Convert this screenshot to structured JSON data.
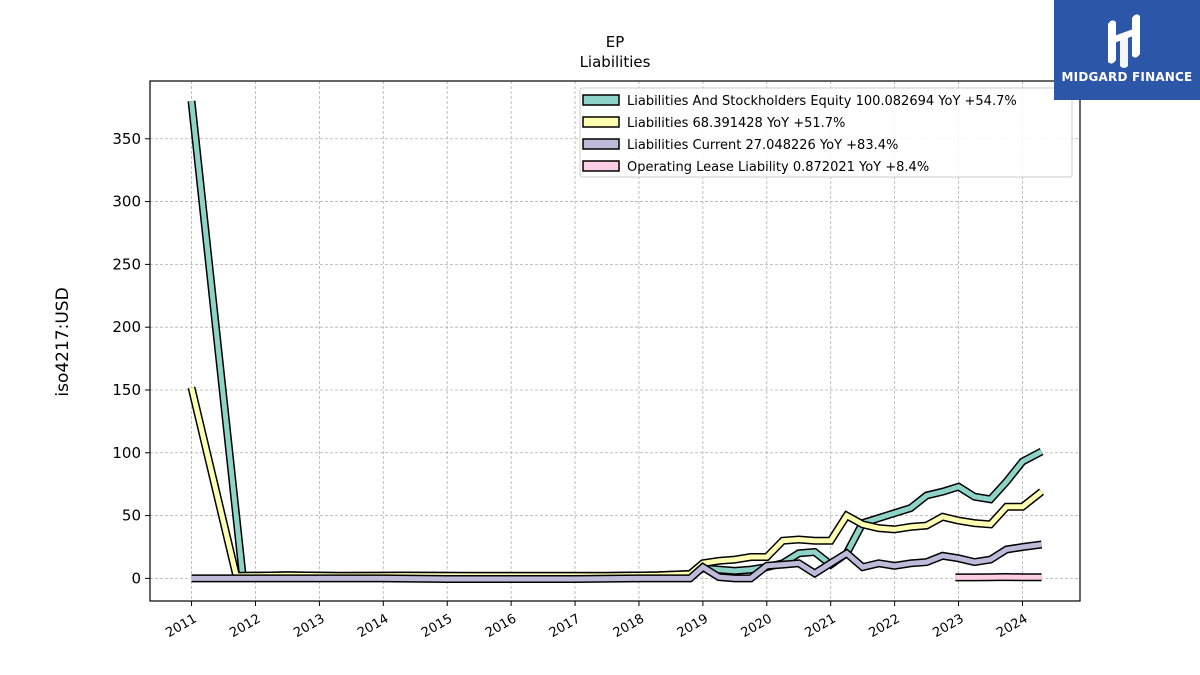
{
  "chart_data": {
    "type": "line",
    "title": "EP",
    "subtitle": "Liabilities",
    "ylabel": "iso4217:USD",
    "xlabel": "",
    "xlim": [
      2010.35,
      2024.9
    ],
    "ylim": [
      -18,
      396
    ],
    "grid": true,
    "legend_position": "top-right",
    "x_ticks": [
      "2011",
      "2012",
      "2013",
      "2014",
      "2015",
      "2016",
      "2017",
      "2018",
      "2019",
      "2020",
      "2021",
      "2022",
      "2023",
      "2024"
    ],
    "y_ticks": [
      0,
      50,
      100,
      150,
      200,
      250,
      300,
      350
    ],
    "series": [
      {
        "name": "Liabilities And Stockholders Equity",
        "legend_value": "100.082694 YoY +54.7%",
        "color": "#8dd3c7",
        "points": [
          [
            2011.0,
            380
          ],
          [
            2011.8,
            2
          ],
          [
            2012.5,
            2.5
          ],
          [
            2013.3,
            2
          ],
          [
            2014.3,
            2.2
          ],
          [
            2015.3,
            2
          ],
          [
            2016.5,
            2
          ],
          [
            2017.5,
            2
          ],
          [
            2018.3,
            2.5
          ],
          [
            2018.8,
            3.5
          ],
          [
            2019.0,
            8
          ],
          [
            2019.25,
            7
          ],
          [
            2019.5,
            6
          ],
          [
            2019.75,
            7
          ],
          [
            2020.0,
            9
          ],
          [
            2020.25,
            12
          ],
          [
            2020.5,
            20
          ],
          [
            2020.75,
            21
          ],
          [
            2021.0,
            11
          ],
          [
            2021.25,
            20
          ],
          [
            2021.5,
            44
          ],
          [
            2021.75,
            48
          ],
          [
            2022.0,
            52
          ],
          [
            2022.25,
            56
          ],
          [
            2022.5,
            66
          ],
          [
            2022.75,
            69
          ],
          [
            2023.0,
            73
          ],
          [
            2023.25,
            65
          ],
          [
            2023.5,
            63
          ],
          [
            2023.75,
            77
          ],
          [
            2024.0,
            93
          ],
          [
            2024.3,
            101
          ]
        ]
      },
      {
        "name": "Liabilities",
        "legend_value": "68.391428 YoY +51.7%",
        "color": "#ffffb3",
        "points": [
          [
            2011.0,
            152
          ],
          [
            2011.7,
            2
          ],
          [
            2012.5,
            2.5
          ],
          [
            2013.3,
            2
          ],
          [
            2014.3,
            2.2
          ],
          [
            2015.3,
            2
          ],
          [
            2016.5,
            2
          ],
          [
            2017.5,
            2
          ],
          [
            2018.3,
            2.5
          ],
          [
            2018.8,
            3.5
          ],
          [
            2019.0,
            12
          ],
          [
            2019.25,
            14
          ],
          [
            2019.5,
            15
          ],
          [
            2019.75,
            17
          ],
          [
            2020.0,
            17
          ],
          [
            2020.25,
            30
          ],
          [
            2020.5,
            31
          ],
          [
            2020.75,
            30
          ],
          [
            2021.0,
            30
          ],
          [
            2021.25,
            50
          ],
          [
            2021.5,
            43
          ],
          [
            2021.75,
            40
          ],
          [
            2022.0,
            39
          ],
          [
            2022.25,
            41
          ],
          [
            2022.5,
            42
          ],
          [
            2022.75,
            49
          ],
          [
            2023.0,
            46
          ],
          [
            2023.25,
            44
          ],
          [
            2023.5,
            43
          ],
          [
            2023.75,
            57
          ],
          [
            2024.0,
            57
          ],
          [
            2024.3,
            69
          ]
        ]
      },
      {
        "name": "Liabilities Current",
        "legend_value": "27.048226 YoY +83.4%",
        "color": "#bebada",
        "points": [
          [
            2011.0,
            0
          ],
          [
            2012.0,
            0
          ],
          [
            2013.0,
            0
          ],
          [
            2014.0,
            0
          ],
          [
            2015.0,
            -0.5
          ],
          [
            2016.0,
            -0.5
          ],
          [
            2017.0,
            -0.5
          ],
          [
            2018.0,
            0
          ],
          [
            2018.8,
            0
          ],
          [
            2019.0,
            9
          ],
          [
            2019.25,
            1
          ],
          [
            2019.5,
            0
          ],
          [
            2019.75,
            0
          ],
          [
            2020.0,
            10
          ],
          [
            2020.25,
            11
          ],
          [
            2020.5,
            12
          ],
          [
            2020.75,
            4
          ],
          [
            2021.0,
            12
          ],
          [
            2021.25,
            20
          ],
          [
            2021.5,
            9
          ],
          [
            2021.75,
            12
          ],
          [
            2022.0,
            10
          ],
          [
            2022.25,
            12
          ],
          [
            2022.5,
            13
          ],
          [
            2022.75,
            18
          ],
          [
            2023.0,
            16
          ],
          [
            2023.25,
            13
          ],
          [
            2023.5,
            15
          ],
          [
            2023.75,
            23
          ],
          [
            2024.0,
            25
          ],
          [
            2024.3,
            27
          ]
        ]
      },
      {
        "name": "Operating Lease Liability",
        "legend_value": "0.872021 YoY +8.4%",
        "color": "#fccde5",
        "points": [
          [
            2022.95,
            0.8
          ],
          [
            2023.25,
            0.8
          ],
          [
            2023.5,
            0.9
          ],
          [
            2023.75,
            1.1
          ],
          [
            2024.0,
            0.9
          ],
          [
            2024.3,
            0.87
          ]
        ]
      }
    ]
  },
  "logo": {
    "text": "MIDGARD FINANCE"
  }
}
